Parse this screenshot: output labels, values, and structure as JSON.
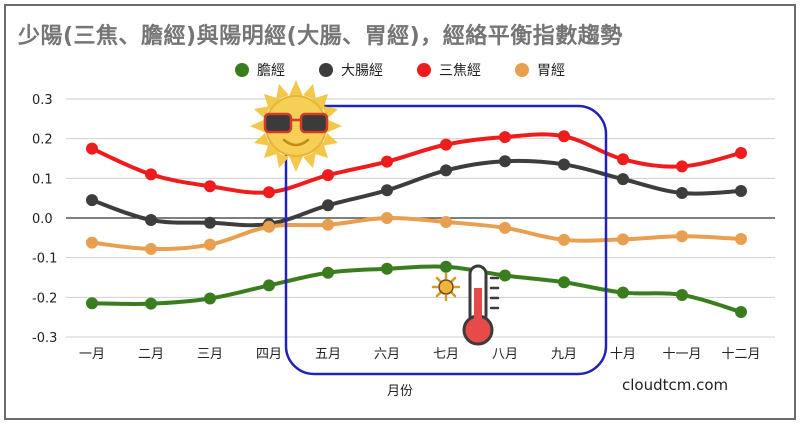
{
  "title": "少陽(三焦、膽經)與陽明經(大腸、胃經)，經絡平衡指數趨勢",
  "watermark": "cloudtcm.com",
  "chart_data": {
    "type": "line",
    "title": "少陽(三焦、膽經)與陽明經(大腸、胃經)，經絡平衡指數趨勢",
    "xlabel": "月份",
    "ylabel": "",
    "categories": [
      "一月",
      "二月",
      "三月",
      "四月",
      "五月",
      "六月",
      "七月",
      "八月",
      "九月",
      "十月",
      "十一月",
      "十二月"
    ],
    "ylim": [
      -0.3,
      0.3
    ],
    "yticks": [
      "0.3",
      "0.2",
      "0.1",
      "0.0",
      "-0.1",
      "-0.2",
      "-0.3"
    ],
    "grid": true,
    "legend_position": "top",
    "series": [
      {
        "name": "膽經",
        "color": "#3a7d1e",
        "values": [
          -0.215,
          -0.216,
          -0.203,
          -0.17,
          -0.138,
          -0.128,
          -0.123,
          -0.145,
          -0.162,
          -0.188,
          -0.194,
          -0.237
        ]
      },
      {
        "name": "大腸經",
        "color": "#3d3d3d",
        "values": [
          0.045,
          -0.005,
          -0.012,
          -0.015,
          0.032,
          0.07,
          0.12,
          0.143,
          0.135,
          0.098,
          0.063,
          0.068
        ]
      },
      {
        "name": "三焦經",
        "color": "#ee1c1c",
        "values": [
          0.175,
          0.11,
          0.08,
          0.065,
          0.108,
          0.142,
          0.185,
          0.204,
          0.206,
          0.148,
          0.13,
          0.164
        ]
      },
      {
        "name": "胃經",
        "color": "#e8a050",
        "values": [
          -0.062,
          -0.078,
          -0.067,
          -0.022,
          -0.017,
          0.0,
          -0.01,
          -0.025,
          -0.055,
          -0.054,
          -0.046,
          -0.053
        ]
      }
    ],
    "annotations": {
      "highlight_box": {
        "from_category": "五月",
        "to_category": "九月",
        "color": "#2222bb"
      },
      "icons": [
        "sun-sunglasses-icon",
        "small-sun-icon",
        "thermometer-icon"
      ]
    }
  }
}
